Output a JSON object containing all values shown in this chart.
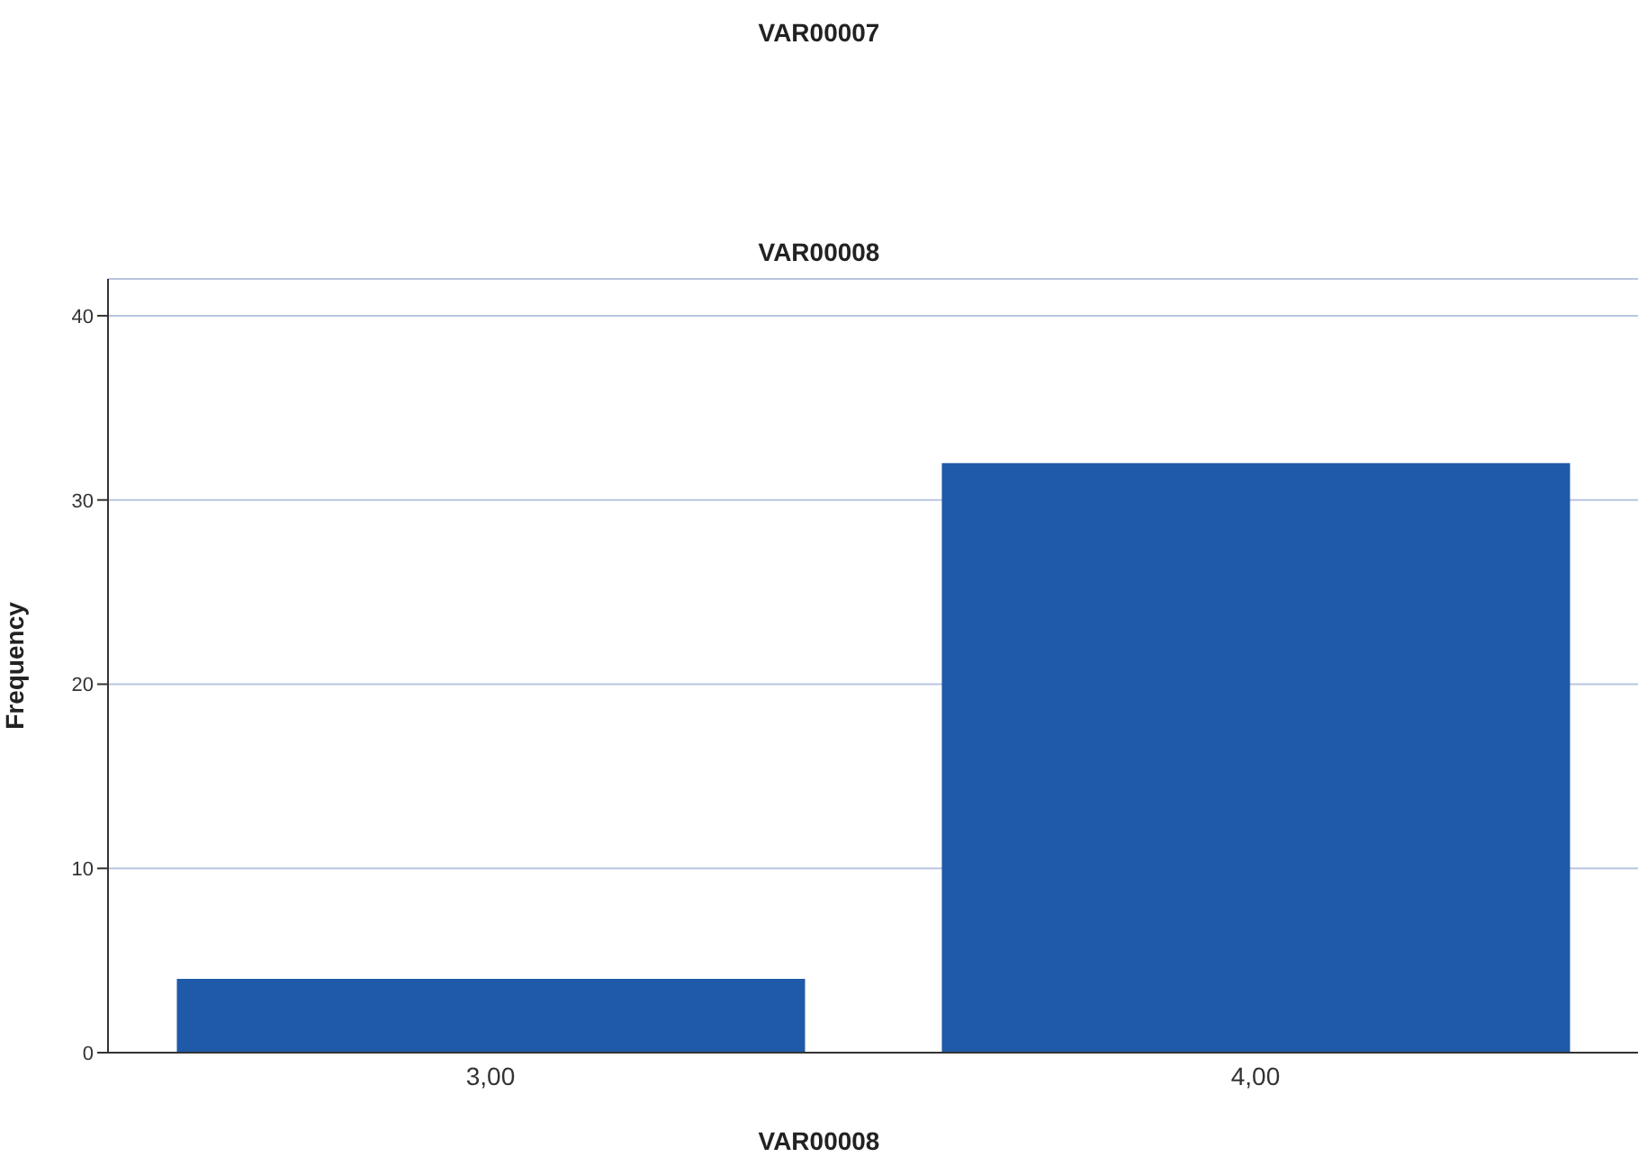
{
  "chart_data": {
    "type": "bar",
    "title": "VAR00007",
    "subtitle": "VAR00008",
    "xlabel": "VAR00008",
    "ylabel": "Frequency",
    "categories": [
      "3,00",
      "4,00"
    ],
    "values": [
      4,
      32
    ],
    "color": "#1f5aa8",
    "ylim": [
      0,
      42
    ],
    "yticks": [
      0,
      10,
      20,
      30,
      40
    ],
    "grid": "y"
  }
}
